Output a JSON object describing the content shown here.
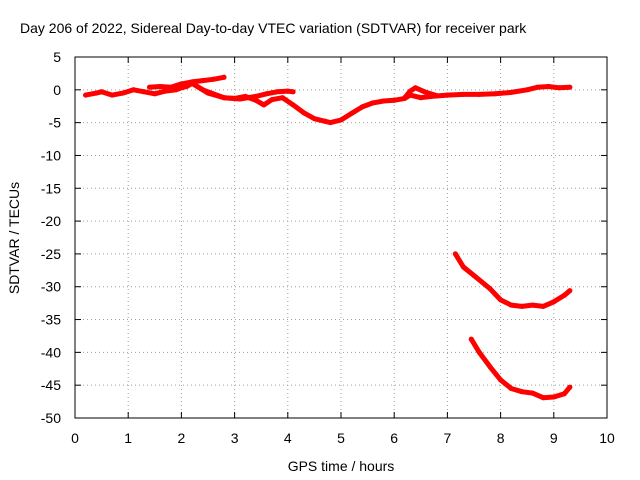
{
  "chart_data": {
    "type": "scatter",
    "title": "Day 206 of 2022, Sidereal Day-to-day VTEC variation (SDTVAR) for receiver park",
    "xlabel": "GPS time / hours",
    "ylabel": "SDTVAR / TECUs",
    "xlim": [
      0,
      10
    ],
    "ylim": [
      -50,
      5
    ],
    "xticks": [
      0,
      1,
      2,
      3,
      4,
      5,
      6,
      7,
      8,
      9,
      10
    ],
    "yticks": [
      5,
      0,
      -5,
      -10,
      -15,
      -20,
      -25,
      -30,
      -35,
      -40,
      -45,
      -50
    ],
    "grid": true,
    "legend": "none",
    "series_color": "#ff0000",
    "series": [
      {
        "x": [
          0.2,
          0.4,
          0.5,
          0.7,
          0.9,
          1.1,
          1.3,
          1.5,
          1.7,
          1.9,
          2.0,
          2.1,
          2.2,
          2.4,
          2.6,
          2.8,
          3.0,
          3.2,
          3.4,
          3.55,
          3.7,
          3.9,
          4.1,
          4.3,
          4.5,
          4.7,
          4.8,
          5.0,
          5.2,
          5.4,
          5.6,
          5.8,
          6.0,
          6.2,
          6.3,
          6.5,
          6.7,
          7.0,
          7.3,
          7.6,
          7.9,
          8.2,
          8.5,
          8.7,
          8.9,
          9.1,
          9.3
        ],
        "y": [
          -0.8,
          -0.5,
          -0.3,
          -0.8,
          -0.5,
          0.0,
          -0.3,
          -0.6,
          -0.2,
          0.0,
          0.3,
          0.5,
          1.0,
          0.0,
          -0.6,
          -1.2,
          -1.3,
          -1.0,
          -1.6,
          -2.3,
          -1.5,
          -1.2,
          -2.3,
          -3.5,
          -4.4,
          -4.8,
          -5.0,
          -4.6,
          -3.6,
          -2.6,
          -2.0,
          -1.7,
          -1.6,
          -1.3,
          -0.8,
          -1.2,
          -1.0,
          -0.8,
          -0.7,
          -0.7,
          -0.6,
          -0.4,
          0.0,
          0.4,
          0.5,
          0.3,
          0.4
        ]
      },
      {
        "x": [
          1.4,
          1.6,
          1.8,
          2.0,
          2.2,
          2.4,
          2.6,
          2.8
        ],
        "y": [
          0.4,
          0.5,
          0.4,
          0.9,
          1.2,
          1.4,
          1.6,
          1.9
        ]
      },
      {
        "x": [
          2.2,
          2.5,
          2.8,
          3.1,
          3.4,
          3.6,
          3.8,
          4.0,
          4.1
        ],
        "y": [
          1.0,
          -0.5,
          -1.2,
          -1.4,
          -1.0,
          -0.6,
          -0.3,
          -0.2,
          -0.3
        ]
      },
      {
        "x": [
          6.2,
          6.3,
          6.4,
          6.6,
          6.8
        ],
        "y": [
          -1.2,
          -0.2,
          0.3,
          -0.4,
          -0.9
        ]
      },
      {
        "x": [
          7.15,
          7.3,
          7.5,
          7.8,
          8.0,
          8.2,
          8.4,
          8.6,
          8.8,
          9.0,
          9.2,
          9.3
        ],
        "y": [
          -25.0,
          -27.0,
          -28.3,
          -30.3,
          -32.0,
          -32.8,
          -33.0,
          -32.8,
          -33.0,
          -32.3,
          -31.3,
          -30.6
        ]
      },
      {
        "x": [
          7.45,
          7.6,
          7.8,
          8.0,
          8.2,
          8.4,
          8.6,
          8.8,
          9.0,
          9.2,
          9.3
        ],
        "y": [
          -38.0,
          -40.0,
          -42.2,
          -44.2,
          -45.5,
          -46.0,
          -46.2,
          -46.9,
          -46.8,
          -46.3,
          -45.3
        ]
      }
    ]
  }
}
